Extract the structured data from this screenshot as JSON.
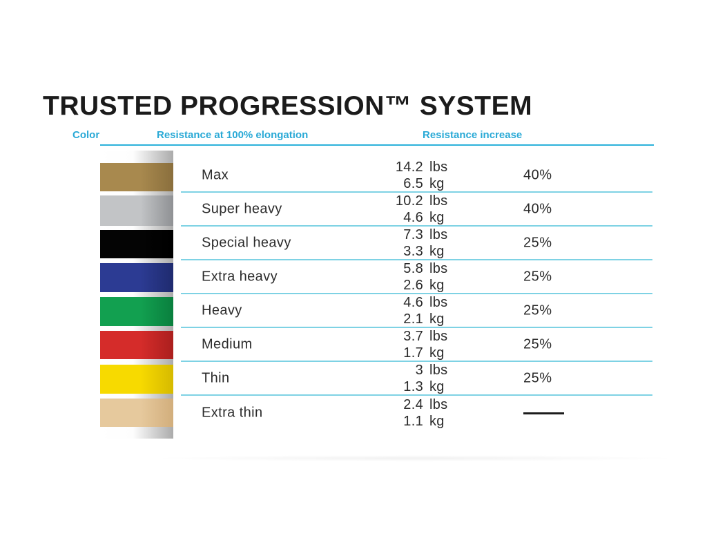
{
  "chart_data": {
    "type": "table",
    "title": "TRUSTED PROGRESSION™ SYSTEM",
    "columns": [
      "Color",
      "Resistance at 100% elongation",
      "Resistance increase"
    ],
    "units": {
      "lbs": "lbs",
      "kg": "kg"
    },
    "rows": [
      {
        "band": "gold",
        "name": "Max",
        "lbs": "14.2",
        "kg": "6.5",
        "increase": "40%",
        "band_color": "#a8894e",
        "band_color_dark": "#8a6f3d"
      },
      {
        "band": "silver",
        "name": "Super heavy",
        "lbs": "10.2",
        "kg": "4.6",
        "increase": "40%",
        "band_color": "#c2c4c6",
        "band_color_dark": "#8f9194"
      },
      {
        "band": "black",
        "name": "Special heavy",
        "lbs": "7.3",
        "kg": "3.3",
        "increase": "25%",
        "band_color": "#040404",
        "band_color_dark": "#000000"
      },
      {
        "band": "blue",
        "name": "Extra heavy",
        "lbs": "5.8",
        "kg": "2.6",
        "increase": "25%",
        "band_color": "#2c3b93",
        "band_color_dark": "#1f2b6f"
      },
      {
        "band": "green",
        "name": "Heavy",
        "lbs": "4.6",
        "kg": "2.1",
        "increase": "25%",
        "band_color": "#12a050",
        "band_color_dark": "#0a7f3e"
      },
      {
        "band": "red",
        "name": "Medium",
        "lbs": "3.7",
        "kg": "1.7",
        "increase": "25%",
        "band_color": "#d52c2a",
        "band_color_dark": "#ab1f1e"
      },
      {
        "band": "yellow",
        "name": "Thin",
        "lbs": "3",
        "kg": "1.3",
        "increase": "25%",
        "band_color": "#f7da00",
        "band_color_dark": "#d6ba00"
      },
      {
        "band": "tan",
        "name": "Extra thin",
        "lbs": "2.4",
        "kg": "1.1",
        "increase": "",
        "band_color": "#e6c99d",
        "band_color_dark": "#d2ae7c"
      }
    ]
  },
  "colors": {
    "title_text": "#1b1b1b",
    "header_text": "#29a9d6",
    "header_line": "#2bb1da",
    "row_divider": "#7ed2e4",
    "body_text": "#2b2b2b",
    "dash": "#1c1c1c"
  }
}
